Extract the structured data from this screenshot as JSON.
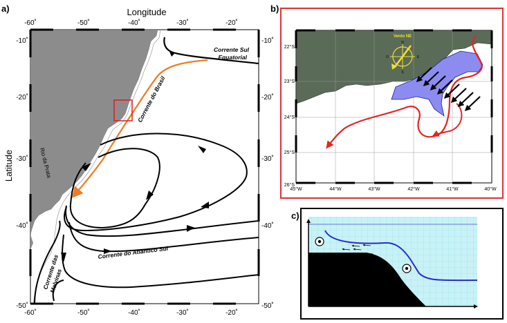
{
  "panel_a": {
    "letter": "a)",
    "x_title": "Longitude",
    "y_title": "Latitude",
    "x_ticks_top": [
      "-60˚",
      "-50˚",
      "-40˚",
      "-30˚",
      "-20˚"
    ],
    "x_ticks_bottom": [
      "-60˚",
      "-50˚",
      "-40˚",
      "-30˚",
      "-20˚"
    ],
    "y_ticks_left": [
      "-10˚",
      "-20˚",
      "-30˚",
      "-40˚",
      "-50˚"
    ],
    "y_ticks_right": [
      "-10˚",
      "-20˚",
      "-30˚",
      "-40˚",
      "-50˚"
    ],
    "labels": {
      "sul_equatorial_1": "Corrente Sul",
      "sul_equatorial_2": "Equatorial",
      "brasil": "Corrente do Brasil",
      "atlantico_sul": "Corrente do Atlântico Sul",
      "malvinas_1": "Corrente das",
      "malvinas_2": "Malvinas",
      "rio_da_prata": "Rio da Prata"
    },
    "colors": {
      "land": "#8c8c8c",
      "brazil_current": "#ee7d22",
      "box": "#e01b1b"
    }
  },
  "panel_b": {
    "letter": "b)",
    "x_ticks": [
      "45°W",
      "44°W",
      "43°W",
      "42°W",
      "41°W",
      "40°W"
    ],
    "y_ticks": [
      "22°S",
      "23°S",
      "24°S",
      "25°S",
      "26°S"
    ],
    "wind_label": "Vento NE",
    "compass": {
      "n": "N",
      "s": "S",
      "e": "E",
      "w": "O"
    },
    "colors": {
      "land": "#5a6b58",
      "upwelling": "#8c8cf0",
      "current": "#e82222",
      "frame": "#e03030",
      "wind": "#f2e030"
    }
  },
  "panel_c": {
    "letter": "c)",
    "colors": {
      "water": "#c8f2f6",
      "grid": "#8fdcea",
      "pycnocline": "#2a2ad0"
    }
  }
}
